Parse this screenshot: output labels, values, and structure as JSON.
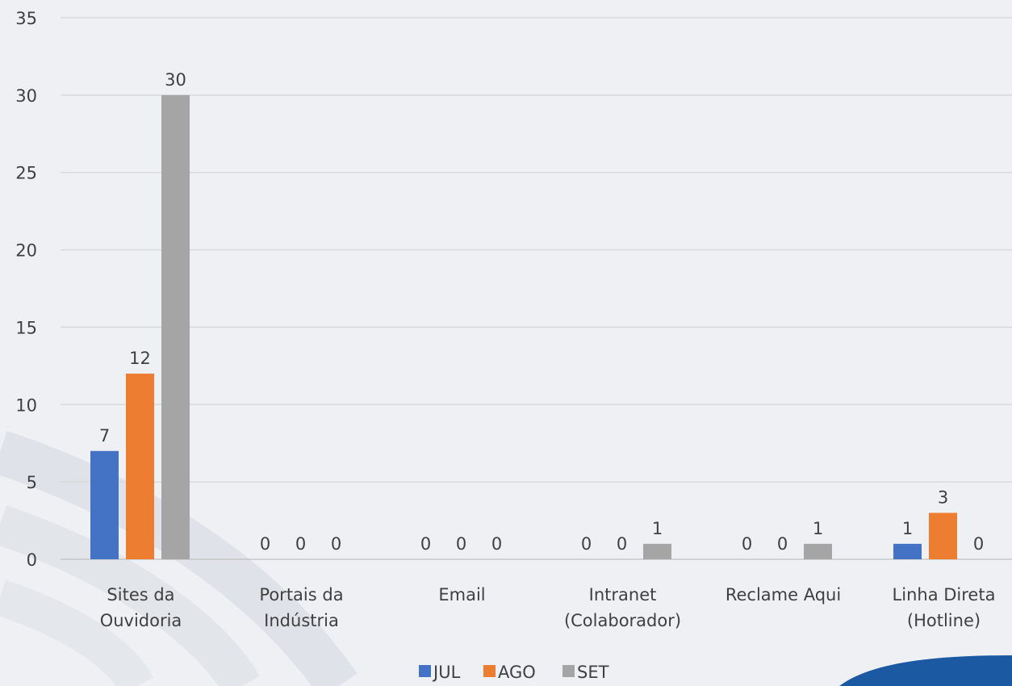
{
  "chart_data": {
    "type": "bar",
    "categories": [
      [
        "Sites da",
        "Ouvidoria"
      ],
      [
        "Portais da",
        "Indústria"
      ],
      [
        "Email"
      ],
      [
        "Intranet",
        "(Colaborador)"
      ],
      [
        "Reclame Aqui"
      ],
      [
        "Linha Direta",
        "(Hotline)"
      ]
    ],
    "series": [
      {
        "name": "JUL",
        "color": "#4472c4",
        "values": [
          7,
          0,
          0,
          0,
          0,
          1
        ]
      },
      {
        "name": "AGO",
        "color": "#ed7d31",
        "values": [
          12,
          0,
          0,
          0,
          0,
          3
        ]
      },
      {
        "name": "SET",
        "color": "#a5a5a5",
        "values": [
          30,
          0,
          0,
          1,
          1,
          0
        ]
      }
    ],
    "ylim": [
      0,
      35
    ],
    "yticks": [
      0,
      5,
      10,
      15,
      20,
      25,
      30,
      35
    ],
    "grid": true,
    "legend_position": "bottom",
    "data_labels": true,
    "title": "",
    "xlabel": "",
    "ylabel": ""
  }
}
